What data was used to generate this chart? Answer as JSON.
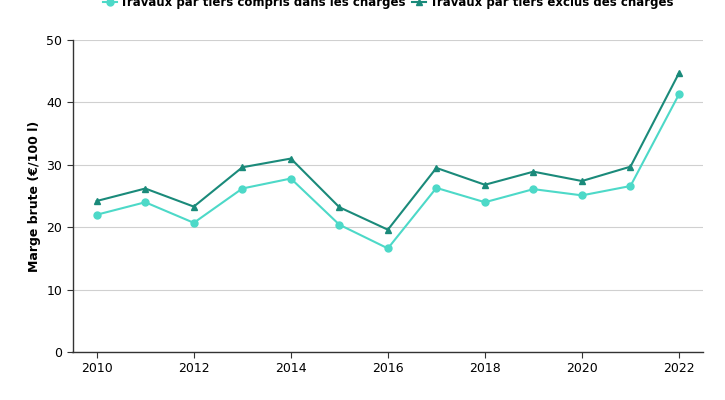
{
  "years": [
    2010,
    2011,
    2012,
    2013,
    2014,
    2015,
    2016,
    2017,
    2018,
    2019,
    2020,
    2021,
    2022
  ],
  "series1_label": "Travaux par tiers compris dans les charges",
  "series1_color": "#4DD9C8",
  "series1_marker": "o",
  "series1_values": [
    22.0,
    24.0,
    20.7,
    26.2,
    27.8,
    20.4,
    16.6,
    26.3,
    24.0,
    26.1,
    25.1,
    26.6,
    41.3
  ],
  "series2_label": "Travaux par tiers exclus des charges",
  "series2_color": "#1A8A7A",
  "series2_marker": "^",
  "series2_values": [
    24.2,
    26.2,
    23.3,
    29.6,
    31.0,
    23.2,
    19.6,
    29.5,
    26.8,
    28.9,
    27.4,
    29.7,
    44.7
  ],
  "ylabel": "Marge brute (€/100 l)",
  "ylim": [
    0,
    50
  ],
  "yticks": [
    0,
    10,
    20,
    30,
    40,
    50
  ],
  "xlim": [
    2009.5,
    2022.5
  ],
  "xticks": [
    2010,
    2012,
    2014,
    2016,
    2018,
    2020,
    2022
  ],
  "background_color": "#ffffff",
  "grid_color": "#d0d0d0",
  "marker_size": 5,
  "linewidth": 1.5,
  "legend_fontsize": 8.5,
  "ylabel_fontsize": 9,
  "tick_fontsize": 9
}
